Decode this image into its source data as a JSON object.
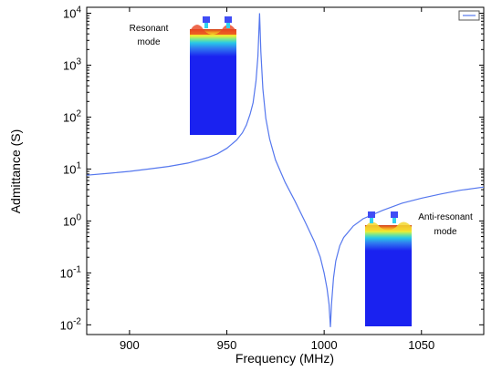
{
  "chart_data": {
    "type": "line",
    "title": "",
    "xlabel": "Frequency  (MHz)",
    "ylabel": "Admittance  (S)",
    "xlim": [
      878,
      1082
    ],
    "ylim": [
      0.0065,
      13000
    ],
    "yscale": "log",
    "x_ticks": [
      900,
      950,
      1000,
      1050
    ],
    "y_ticks": [
      {
        "value": 0.01,
        "base": "10",
        "exp": "-2"
      },
      {
        "value": 0.1,
        "base": "10",
        "exp": "-1"
      },
      {
        "value": 1,
        "base": "10",
        "exp": "0"
      },
      {
        "value": 10,
        "base": "10",
        "exp": "1"
      },
      {
        "value": 100,
        "base": "10",
        "exp": "2"
      },
      {
        "value": 1000,
        "base": "10",
        "exp": "3"
      },
      {
        "value": 10000,
        "base": "10",
        "exp": "4"
      }
    ],
    "grid": false,
    "legend": {
      "position": "top-right",
      "entries": [
        ""
      ]
    },
    "series": [
      {
        "color": "#5577ee",
        "x": [
          878,
          890,
          900,
          910,
          920,
          930,
          940,
          945,
          950,
          955,
          958,
          960,
          962,
          963.5,
          965,
          966,
          966.8,
          967.5,
          968.5,
          970,
          972,
          975,
          980,
          985,
          990,
          995,
          998,
          1000,
          1001.5,
          1002.5,
          1003.2,
          1003.8,
          1004.8,
          1006,
          1008,
          1010,
          1015,
          1020,
          1030,
          1040,
          1050,
          1060,
          1070,
          1082
        ],
        "y": [
          7.6,
          8.3,
          9.0,
          10.0,
          11.2,
          13.0,
          16.5,
          19.5,
          25,
          36,
          50,
          70,
          115,
          190,
          500,
          1500,
          10000,
          1800,
          350,
          95,
          38,
          15,
          5.5,
          2.4,
          1.0,
          0.4,
          0.2,
          0.1,
          0.05,
          0.025,
          0.009,
          0.025,
          0.08,
          0.17,
          0.33,
          0.48,
          0.8,
          1.1,
          1.6,
          2.2,
          2.75,
          3.3,
          3.9,
          4.5
        ]
      }
    ],
    "annotations": [
      {
        "lines": [
          "Resonant",
          "mode"
        ]
      },
      {
        "lines": [
          "Anti-resonant",
          "mode"
        ]
      }
    ]
  },
  "colors": {
    "curve": "#5577ee",
    "substrate": "#1a22f0"
  }
}
